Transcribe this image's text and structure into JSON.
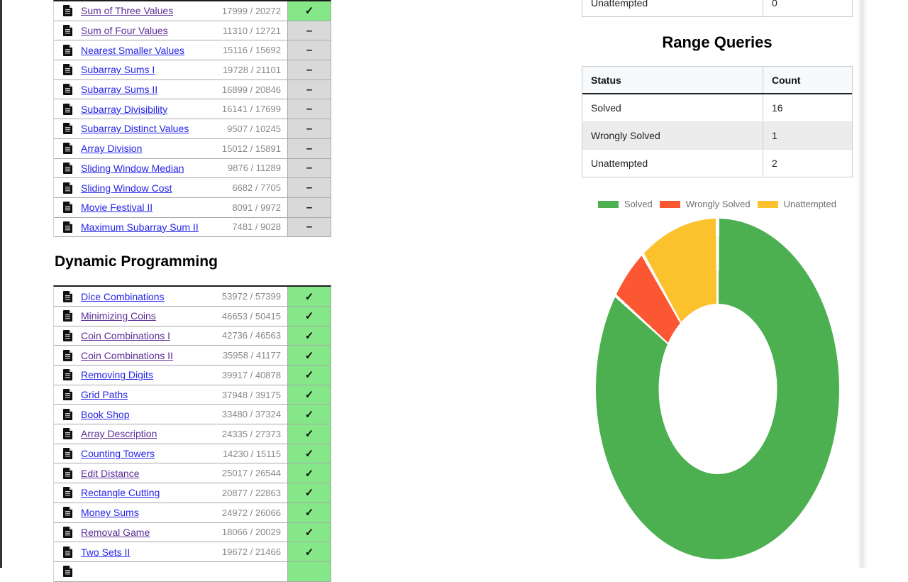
{
  "left_column": {
    "status_icons": {
      "solved": "✓",
      "zero": "–"
    },
    "sections": [
      {
        "heading": "",
        "rows": [
          {
            "name": "Sum of Three Values",
            "count": "17999 / 20272",
            "status": "solved",
            "visited": true
          },
          {
            "name": "Sum of Four Values",
            "count": "11310 / 12721",
            "status": "zero",
            "visited": true
          },
          {
            "name": "Nearest Smaller Values",
            "count": "15116 / 15692",
            "status": "zero",
            "visited": false
          },
          {
            "name": "Subarray Sums I",
            "count": "19728 / 21101",
            "status": "zero",
            "visited": false
          },
          {
            "name": "Subarray Sums II",
            "count": "16899 / 20846",
            "status": "zero",
            "visited": false
          },
          {
            "name": "Subarray Divisibility",
            "count": "16141 / 17699",
            "status": "zero",
            "visited": false
          },
          {
            "name": "Subarray Distinct Values",
            "count": "9507 / 10245",
            "status": "zero",
            "visited": false
          },
          {
            "name": "Array Division",
            "count": "15012 / 15891",
            "status": "zero",
            "visited": false
          },
          {
            "name": "Sliding Window Median",
            "count": "9876 / 11289",
            "status": "zero",
            "visited": false
          },
          {
            "name": "Sliding Window Cost",
            "count": "6682 / 7705",
            "status": "zero",
            "visited": false
          },
          {
            "name": "Movie Festival II",
            "count": "8091 / 9972",
            "status": "zero",
            "visited": false
          },
          {
            "name": "Maximum Subarray Sum II",
            "count": "7481 / 9028",
            "status": "zero",
            "visited": false
          }
        ]
      },
      {
        "heading": "Dynamic Programming",
        "rows": [
          {
            "name": "Dice Combinations",
            "count": "53972 / 57399",
            "status": "solved",
            "visited": false
          },
          {
            "name": "Minimizing Coins",
            "count": "46653 / 50415",
            "status": "solved",
            "visited": true
          },
          {
            "name": "Coin Combinations I",
            "count": "42736 / 46563",
            "status": "solved",
            "visited": true
          },
          {
            "name": "Coin Combinations II",
            "count": "35958 / 41177",
            "status": "solved",
            "visited": true
          },
          {
            "name": "Removing Digits",
            "count": "39917 / 40878",
            "status": "solved",
            "visited": false
          },
          {
            "name": "Grid Paths",
            "count": "37948 / 39175",
            "status": "solved",
            "visited": false
          },
          {
            "name": "Book Shop",
            "count": "33480 / 37324",
            "status": "solved",
            "visited": false
          },
          {
            "name": "Array Description",
            "count": "24335 / 27373",
            "status": "solved",
            "visited": true
          },
          {
            "name": "Counting Towers",
            "count": "14230 / 15115",
            "status": "solved",
            "visited": false
          },
          {
            "name": "Edit Distance",
            "count": "25017 / 26544",
            "status": "solved",
            "visited": true
          },
          {
            "name": "Rectangle Cutting",
            "count": "20877 / 22863",
            "status": "solved",
            "visited": false
          },
          {
            "name": "Money Sums",
            "count": "24972 / 26066",
            "status": "solved",
            "visited": false
          },
          {
            "name": "Removal Game",
            "count": "18066 / 20029",
            "status": "solved",
            "visited": true
          },
          {
            "name": "Two Sets II",
            "count": "19672 / 21466",
            "status": "solved",
            "visited": false
          },
          {
            "name": "",
            "count": "",
            "status": "solved",
            "visited": false
          }
        ]
      }
    ]
  },
  "right_column": {
    "overflow_row": {
      "status": "Unattempted",
      "count": "0"
    },
    "section_title": "Range Queries",
    "stats_table": {
      "headers": [
        "Status",
        "Count"
      ],
      "rows": [
        {
          "status": "Solved",
          "count": "16"
        },
        {
          "status": "Wrongly Solved",
          "count": "1"
        },
        {
          "status": "Unattempted",
          "count": "2"
        }
      ]
    }
  },
  "chart_data": {
    "type": "pie",
    "title": "Range Queries",
    "labels": [
      "Solved",
      "Wrongly Solved",
      "Unattempted"
    ],
    "values": [
      16,
      1,
      2
    ],
    "colors": [
      "#4caf50",
      "#fc5733",
      "#fcc22d"
    ],
    "donut_hole": 0.5,
    "legend_position": "top",
    "start_angle_deg": 0,
    "direction": "clockwise"
  },
  "colors": {
    "link": "#2525e8",
    "link_visited": "#5b2c96",
    "score_solved_bg": "#85e788",
    "score_zero_bg": "#d9d9d9",
    "table_top_border": "#1c1c1c",
    "legend_text": "#6f6f6f"
  }
}
